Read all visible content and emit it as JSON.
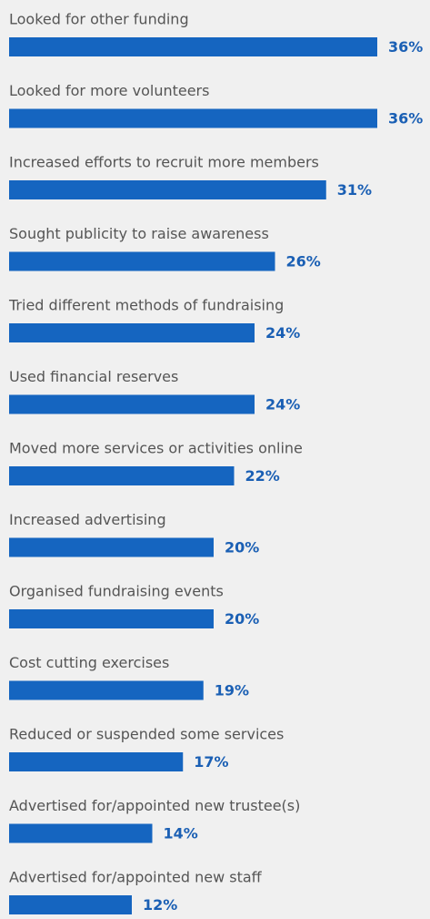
{
  "chart_data": {
    "type": "bar",
    "orientation": "horizontal",
    "categories": [
      "Looked for other funding",
      "Looked for more volunteers",
      "Increased efforts to recruit more members",
      "Sought publicity to raise awareness",
      "Tried different methods of fundraising",
      "Used financial reserves",
      "Moved more services or activities online",
      "Increased advertising",
      "Organised fundraising events",
      "Cost cutting exercises",
      "Reduced or suspended some services",
      "Advertised for/appointed new trustee(s)",
      "Advertised for/appointed new staff"
    ],
    "values": [
      36,
      36,
      31,
      26,
      24,
      24,
      22,
      20,
      20,
      19,
      17,
      14,
      12
    ],
    "value_labels": [
      "36%",
      "36%",
      "31%",
      "26%",
      "24%",
      "24%",
      "22%",
      "20%",
      "20%",
      "19%",
      "17%",
      "14%",
      "12%"
    ],
    "color": "#1565c0",
    "xlim": [
      0,
      40
    ]
  }
}
